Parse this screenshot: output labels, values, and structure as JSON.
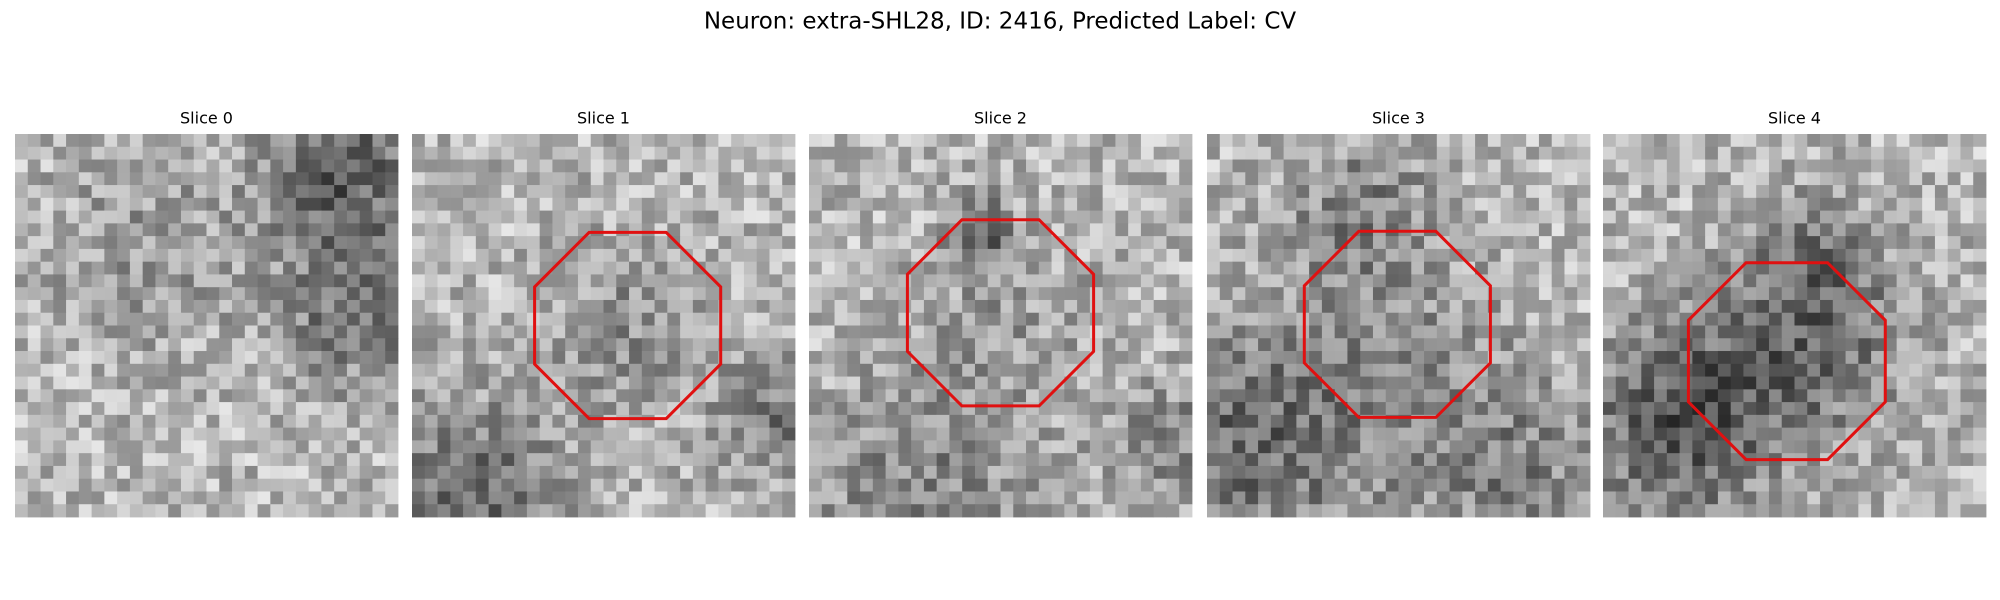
{
  "title": "Neuron: extra-SHL28, ID: 2416, Predicted Label: CV",
  "panels": [
    {
      "title": "Slice 0"
    },
    {
      "title": "Slice 1"
    },
    {
      "title": "Slice 2"
    },
    {
      "title": "Slice 3"
    },
    {
      "title": "Slice 4"
    }
  ]
}
